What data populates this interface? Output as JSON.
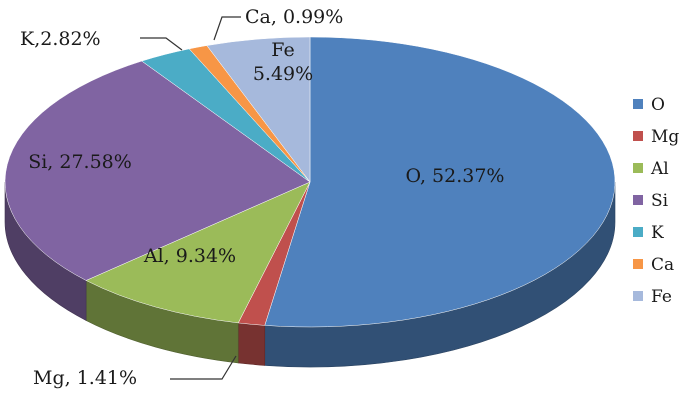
{
  "chart_data": {
    "type": "pie",
    "style": "3d",
    "title": "",
    "categories": [
      "O",
      "Mg",
      "Al",
      "Si",
      "K",
      "Ca",
      "Fe"
    ],
    "values": [
      52.37,
      1.41,
      9.34,
      27.58,
      2.82,
      0.99,
      5.49
    ],
    "unit": "%",
    "colors": [
      "#4F81BD",
      "#C0504D",
      "#9BBB59",
      "#8064A2",
      "#4BACC6",
      "#F79646",
      "#A6B9DC"
    ],
    "data_labels": [
      "O, 52.37%",
      "Mg, 1.41%",
      "Al, 9.34%",
      "Si, 27.58%",
      "K,2.82%",
      "Ca, 0.99%",
      "Fe\n5.49%"
    ],
    "legend": {
      "placement": "right",
      "entries": [
        "O",
        "Mg",
        "Al",
        "Si",
        "K",
        "Ca",
        "Fe"
      ]
    }
  }
}
